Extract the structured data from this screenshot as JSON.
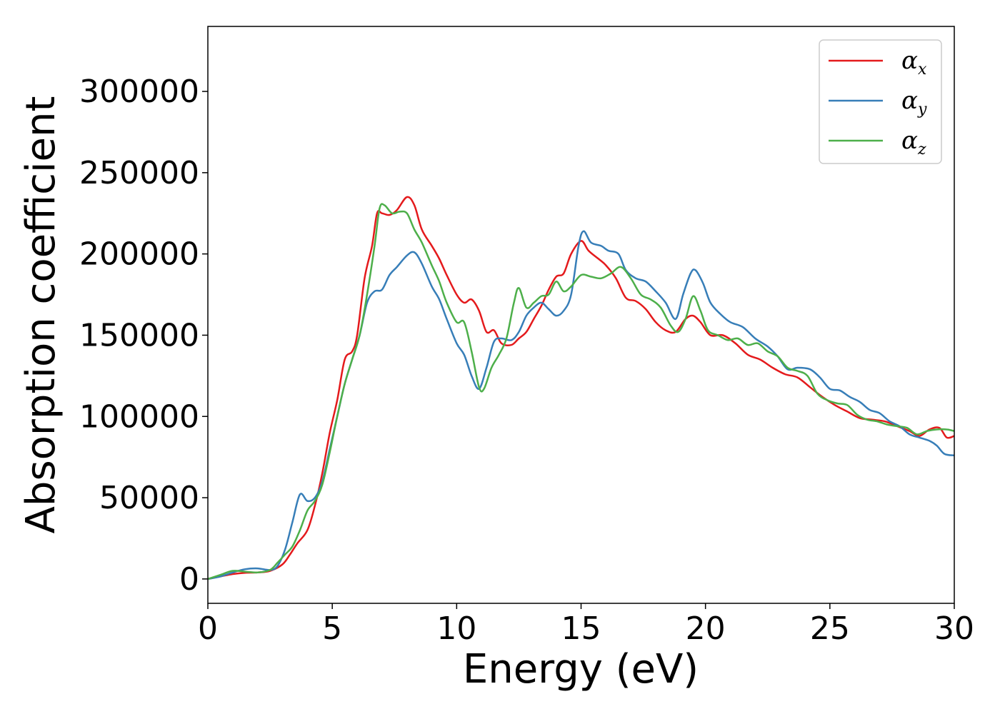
{
  "chart_data": {
    "type": "line",
    "title": "",
    "xlabel": "Energy (eV)",
    "ylabel": "Absorption coefficient",
    "xlim": [
      0,
      30
    ],
    "ylim": [
      -15000,
      340000
    ],
    "xticks": [
      0,
      5,
      10,
      15,
      20,
      25,
      30
    ],
    "yticks": [
      0,
      50000,
      100000,
      150000,
      200000,
      250000,
      300000
    ],
    "grid": false,
    "legend_position": "top-right",
    "series": [
      {
        "name": "α_x",
        "base": "α",
        "sub": "x",
        "color": "#e41a1c",
        "points": [
          [
            0,
            0
          ],
          [
            0.5,
            1500
          ],
          [
            1,
            3000
          ],
          [
            1.5,
            3800
          ],
          [
            2,
            4000
          ],
          [
            2.5,
            5000
          ],
          [
            3,
            9000
          ],
          [
            3.3,
            15000
          ],
          [
            3.6,
            22000
          ],
          [
            4,
            30000
          ],
          [
            4.3,
            45000
          ],
          [
            4.6,
            65000
          ],
          [
            4.9,
            90000
          ],
          [
            5.2,
            110000
          ],
          [
            5.5,
            135000
          ],
          [
            5.8,
            140000
          ],
          [
            6,
            150000
          ],
          [
            6.3,
            185000
          ],
          [
            6.6,
            205000
          ],
          [
            6.8,
            225000
          ],
          [
            7,
            225000
          ],
          [
            7.3,
            224000
          ],
          [
            7.6,
            227000
          ],
          [
            8,
            235000
          ],
          [
            8.3,
            230000
          ],
          [
            8.6,
            215000
          ],
          [
            9,
            205000
          ],
          [
            9.3,
            197000
          ],
          [
            9.6,
            187000
          ],
          [
            10,
            175000
          ],
          [
            10.3,
            170000
          ],
          [
            10.6,
            172000
          ],
          [
            10.9,
            165000
          ],
          [
            11.2,
            152000
          ],
          [
            11.5,
            153000
          ],
          [
            11.8,
            145000
          ],
          [
            12.2,
            144000
          ],
          [
            12.5,
            148000
          ],
          [
            12.8,
            152000
          ],
          [
            13.1,
            160000
          ],
          [
            13.4,
            168000
          ],
          [
            13.7,
            178000
          ],
          [
            14,
            186000
          ],
          [
            14.3,
            188000
          ],
          [
            14.6,
            200000
          ],
          [
            15,
            208000
          ],
          [
            15.3,
            202000
          ],
          [
            15.7,
            197000
          ],
          [
            16,
            193000
          ],
          [
            16.4,
            185000
          ],
          [
            16.8,
            173000
          ],
          [
            17.2,
            171000
          ],
          [
            17.6,
            166000
          ],
          [
            18,
            158000
          ],
          [
            18.4,
            153000
          ],
          [
            18.8,
            152000
          ],
          [
            19.2,
            160000
          ],
          [
            19.5,
            162000
          ],
          [
            19.8,
            158000
          ],
          [
            20.2,
            150000
          ],
          [
            20.7,
            150000
          ],
          [
            21.2,
            145000
          ],
          [
            21.7,
            138000
          ],
          [
            22.2,
            135000
          ],
          [
            22.7,
            130000
          ],
          [
            23.2,
            126000
          ],
          [
            23.7,
            124000
          ],
          [
            24.2,
            118000
          ],
          [
            24.7,
            112000
          ],
          [
            25.2,
            107000
          ],
          [
            25.7,
            103000
          ],
          [
            26.2,
            99000
          ],
          [
            26.7,
            98000
          ],
          [
            27.2,
            97000
          ],
          [
            27.7,
            94000
          ],
          [
            28.2,
            91000
          ],
          [
            28.6,
            88000
          ],
          [
            29,
            92000
          ],
          [
            29.4,
            93000
          ],
          [
            29.7,
            87000
          ],
          [
            30,
            88000
          ]
        ]
      },
      {
        "name": "α_y",
        "base": "α",
        "sub": "y",
        "color": "#377eb8",
        "points": [
          [
            0,
            0
          ],
          [
            0.5,
            1500
          ],
          [
            1,
            4000
          ],
          [
            1.5,
            6000
          ],
          [
            2,
            6500
          ],
          [
            2.5,
            5500
          ],
          [
            2.8,
            8000
          ],
          [
            3.1,
            18000
          ],
          [
            3.4,
            35000
          ],
          [
            3.7,
            52000
          ],
          [
            4,
            48000
          ],
          [
            4.3,
            50000
          ],
          [
            4.6,
            60000
          ],
          [
            4.9,
            80000
          ],
          [
            5.2,
            100000
          ],
          [
            5.5,
            120000
          ],
          [
            5.8,
            135000
          ],
          [
            6.1,
            150000
          ],
          [
            6.4,
            170000
          ],
          [
            6.7,
            177000
          ],
          [
            7,
            178000
          ],
          [
            7.3,
            187000
          ],
          [
            7.6,
            192000
          ],
          [
            8,
            199000
          ],
          [
            8.3,
            201000
          ],
          [
            8.6,
            194000
          ],
          [
            9,
            180000
          ],
          [
            9.3,
            172000
          ],
          [
            9.6,
            160000
          ],
          [
            10,
            145000
          ],
          [
            10.3,
            138000
          ],
          [
            10.6,
            125000
          ],
          [
            10.9,
            117000
          ],
          [
            11.2,
            130000
          ],
          [
            11.5,
            146000
          ],
          [
            11.8,
            148000
          ],
          [
            12.2,
            147000
          ],
          [
            12.5,
            152000
          ],
          [
            12.8,
            162000
          ],
          [
            13.1,
            167000
          ],
          [
            13.4,
            170000
          ],
          [
            13.7,
            166000
          ],
          [
            14,
            162000
          ],
          [
            14.3,
            165000
          ],
          [
            14.6,
            175000
          ],
          [
            14.9,
            205000
          ],
          [
            15.1,
            214000
          ],
          [
            15.4,
            207000
          ],
          [
            15.8,
            205000
          ],
          [
            16.1,
            202000
          ],
          [
            16.5,
            200000
          ],
          [
            16.8,
            190000
          ],
          [
            17.2,
            185000
          ],
          [
            17.6,
            183000
          ],
          [
            18,
            177000
          ],
          [
            18.4,
            170000
          ],
          [
            18.8,
            160000
          ],
          [
            19.1,
            175000
          ],
          [
            19.4,
            188000
          ],
          [
            19.6,
            190000
          ],
          [
            19.9,
            182000
          ],
          [
            20.2,
            170000
          ],
          [
            20.6,
            163000
          ],
          [
            21,
            158000
          ],
          [
            21.5,
            155000
          ],
          [
            22,
            148000
          ],
          [
            22.5,
            143000
          ],
          [
            22.9,
            137000
          ],
          [
            23.3,
            129000
          ],
          [
            23.7,
            130000
          ],
          [
            24.2,
            129000
          ],
          [
            24.6,
            124000
          ],
          [
            25,
            117000
          ],
          [
            25.4,
            116000
          ],
          [
            25.8,
            112000
          ],
          [
            26.2,
            109000
          ],
          [
            26.6,
            104000
          ],
          [
            27,
            102000
          ],
          [
            27.4,
            97000
          ],
          [
            27.8,
            94000
          ],
          [
            28.2,
            89000
          ],
          [
            28.6,
            87000
          ],
          [
            29,
            85000
          ],
          [
            29.3,
            82000
          ],
          [
            29.6,
            77000
          ],
          [
            30,
            76000
          ]
        ]
      },
      {
        "name": "α_z",
        "base": "α",
        "sub": "z",
        "color": "#4daf4a",
        "points": [
          [
            0,
            0
          ],
          [
            0.5,
            2500
          ],
          [
            1,
            5000
          ],
          [
            1.5,
            4500
          ],
          [
            2,
            4000
          ],
          [
            2.5,
            5500
          ],
          [
            2.8,
            10000
          ],
          [
            3.1,
            15000
          ],
          [
            3.4,
            20000
          ],
          [
            3.7,
            30000
          ],
          [
            4,
            42000
          ],
          [
            4.3,
            48000
          ],
          [
            4.6,
            58000
          ],
          [
            4.9,
            78000
          ],
          [
            5.2,
            100000
          ],
          [
            5.5,
            120000
          ],
          [
            5.8,
            135000
          ],
          [
            6.1,
            150000
          ],
          [
            6.4,
            175000
          ],
          [
            6.7,
            205000
          ],
          [
            6.9,
            228000
          ],
          [
            7.1,
            230000
          ],
          [
            7.4,
            225000
          ],
          [
            7.7,
            226000
          ],
          [
            8,
            225000
          ],
          [
            8.3,
            215000
          ],
          [
            8.6,
            207000
          ],
          [
            9,
            193000
          ],
          [
            9.3,
            183000
          ],
          [
            9.6,
            170000
          ],
          [
            10,
            158000
          ],
          [
            10.3,
            158000
          ],
          [
            10.6,
            140000
          ],
          [
            10.9,
            118000
          ],
          [
            11.1,
            117000
          ],
          [
            11.4,
            130000
          ],
          [
            11.7,
            138000
          ],
          [
            12,
            148000
          ],
          [
            12.3,
            170000
          ],
          [
            12.5,
            179000
          ],
          [
            12.8,
            167000
          ],
          [
            13.1,
            170000
          ],
          [
            13.4,
            174000
          ],
          [
            13.7,
            175000
          ],
          [
            14,
            183000
          ],
          [
            14.3,
            177000
          ],
          [
            14.6,
            180000
          ],
          [
            15,
            187000
          ],
          [
            15.4,
            186000
          ],
          [
            15.8,
            185000
          ],
          [
            16.2,
            188000
          ],
          [
            16.6,
            192000
          ],
          [
            17,
            185000
          ],
          [
            17.4,
            175000
          ],
          [
            17.8,
            172000
          ],
          [
            18.2,
            167000
          ],
          [
            18.6,
            156000
          ],
          [
            18.9,
            152000
          ],
          [
            19.2,
            160000
          ],
          [
            19.5,
            174000
          ],
          [
            19.8,
            165000
          ],
          [
            20.1,
            153000
          ],
          [
            20.5,
            150000
          ],
          [
            20.9,
            147000
          ],
          [
            21.3,
            148000
          ],
          [
            21.7,
            144000
          ],
          [
            22.1,
            145000
          ],
          [
            22.5,
            140000
          ],
          [
            22.9,
            137000
          ],
          [
            23.3,
            130000
          ],
          [
            23.7,
            128000
          ],
          [
            24.1,
            125000
          ],
          [
            24.5,
            114000
          ],
          [
            24.9,
            110000
          ],
          [
            25.3,
            108000
          ],
          [
            25.7,
            107000
          ],
          [
            26.1,
            101000
          ],
          [
            26.5,
            98000
          ],
          [
            26.9,
            97000
          ],
          [
            27.3,
            95000
          ],
          [
            27.7,
            94000
          ],
          [
            28.1,
            93000
          ],
          [
            28.5,
            89000
          ],
          [
            28.9,
            91000
          ],
          [
            29.3,
            92000
          ],
          [
            29.7,
            92000
          ],
          [
            30,
            91000
          ]
        ]
      }
    ]
  }
}
